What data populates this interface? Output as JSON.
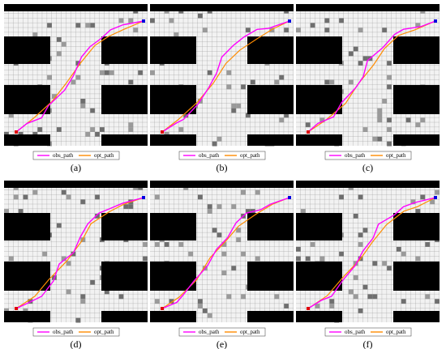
{
  "panels": [
    {
      "label": "(a)",
      "legend": [
        "obs_path",
        "opt_path"
      ]
    },
    {
      "label": "(b)",
      "legend": [
        "obs_path",
        "opt_path"
      ]
    },
    {
      "label": "(c)",
      "legend": [
        "obs_path",
        "opt_path"
      ]
    },
    {
      "label": "(d)",
      "legend": [
        "obs_path",
        "opt_path"
      ]
    },
    {
      "label": "(e)",
      "legend": [
        "obs_path",
        "opt_path"
      ]
    },
    {
      "label": "(f)",
      "legend": [
        "obs_path",
        "opt_path"
      ]
    }
  ]
}
